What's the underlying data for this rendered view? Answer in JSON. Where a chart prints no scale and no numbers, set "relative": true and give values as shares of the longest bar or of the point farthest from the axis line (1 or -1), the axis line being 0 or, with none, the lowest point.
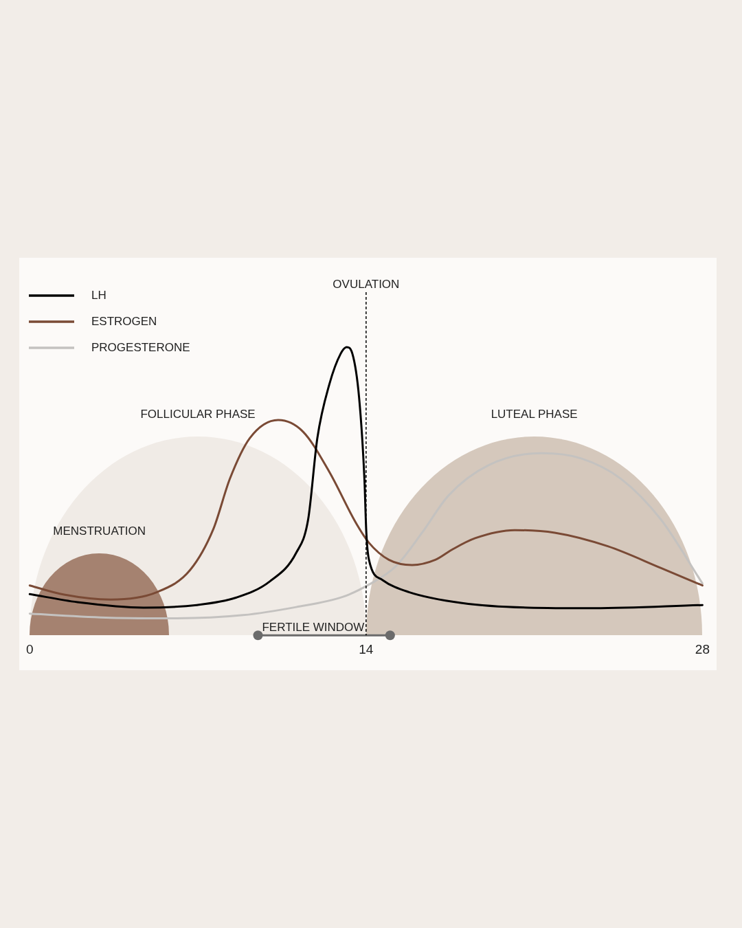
{
  "chart_data": {
    "type": "line",
    "relative": true,
    "xlim": [
      0,
      28
    ],
    "xticks": [
      0,
      14,
      28
    ],
    "grid": false,
    "legend": "top left",
    "line_style": "solid",
    "marker": "none",
    "series": [
      {
        "name": "LH",
        "color": "#000000",
        "x": [
          0,
          1.99,
          4.74,
          6.95,
          8.6,
          9.99,
          11.09,
          11.59,
          11.97,
          12.47,
          12.94,
          13.19,
          13.43,
          13.71,
          13.93,
          14.01,
          14.12,
          14.68,
          15.78,
          17.99,
          20.74,
          23.5,
          28
        ],
        "values": [
          0.143,
          0.115,
          0.096,
          0.105,
          0.131,
          0.187,
          0.286,
          0.403,
          0.684,
          0.871,
          0.977,
          1,
          0.977,
          0.824,
          0.543,
          0.356,
          0.262,
          0.192,
          0.15,
          0.112,
          0.096,
          0.094,
          0.105
        ]
      },
      {
        "name": "ESTROGEN",
        "color": "#7a4a35",
        "x": [
          0,
          1.43,
          3.37,
          5.3,
          6.68,
          7.64,
          8.33,
          9.16,
          10.34,
          11.37,
          12.47,
          13.57,
          14.12,
          14.95,
          15.92,
          16.88,
          17.57,
          18.54,
          20.19,
          21.85,
          24.06,
          26.26,
          28
        ],
        "values": [
          0.173,
          0.141,
          0.124,
          0.15,
          0.227,
          0.368,
          0.543,
          0.684,
          0.747,
          0.707,
          0.567,
          0.391,
          0.321,
          0.262,
          0.244,
          0.262,
          0.297,
          0.337,
          0.365,
          0.356,
          0.309,
          0.234,
          0.173
        ]
      },
      {
        "name": "PROGESTERONE",
        "color": "#c4c2c0",
        "x": [
          0,
          3.37,
          6.12,
          8.88,
          11.09,
          13.02,
          14.12,
          15.23,
          16.33,
          17.43,
          19.09,
          21.3,
          22.95,
          24.61,
          26.26,
          28
        ],
        "values": [
          0.075,
          0.061,
          0.059,
          0.07,
          0.098,
          0.133,
          0.176,
          0.239,
          0.356,
          0.485,
          0.59,
          0.632,
          0.614,
          0.543,
          0.403,
          0.18
        ]
      },
      {
        "color": "#6b6b6b",
        "marker": "circle",
        "x": [
          9.5,
          15
        ],
        "values": [
          0,
          0
        ]
      }
    ],
    "bands": [
      {
        "axis": "x",
        "from": 0,
        "to": 14,
        "label": "FOLLICULAR PHASE",
        "color": "#f0ebe6"
      },
      {
        "axis": "x",
        "from": 14,
        "to": 28,
        "label": "LUTEAL PHASE",
        "color": "#d5c8bc"
      },
      {
        "axis": "x",
        "from": 0,
        "to": 5.8,
        "label": "MENSTRUATION",
        "color": "#a58270"
      }
    ],
    "annotations": [
      {
        "text": "FERTILE WINDOW",
        "x": 11.8,
        "y": 0
      }
    ],
    "ref_lines": [
      {
        "axis": "x",
        "value": 14,
        "label": "OVULATION",
        "color": "#000000",
        "line_style": "dashed"
      }
    ]
  }
}
